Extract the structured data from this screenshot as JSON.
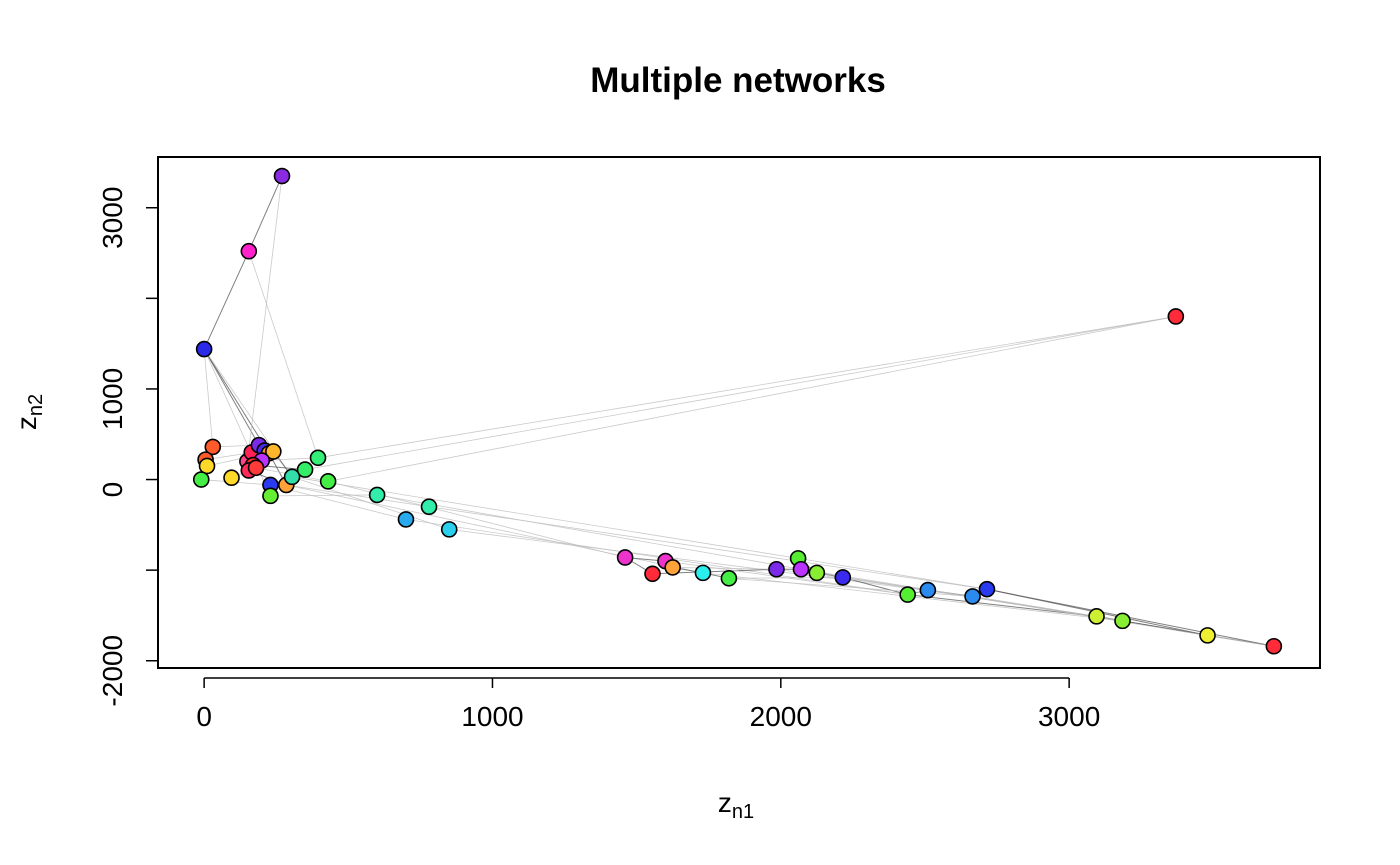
{
  "chart_data": {
    "type": "scatter",
    "title": "Multiple networks",
    "xlabel": "z",
    "xlabel_sub": "n1",
    "ylabel": "z",
    "ylabel_sub": "n2",
    "xlim": [
      -160,
      3870
    ],
    "ylim": [
      -2080,
      3560
    ],
    "xticks": [
      0,
      1000,
      2000,
      3000
    ],
    "xtick_labels": [
      "0",
      "1000",
      "2000",
      "3000"
    ],
    "yticks": [
      -2000,
      -1000,
      0,
      1000,
      2000,
      3000
    ],
    "ytick_labels": [
      "-2000",
      "",
      "0",
      "1000",
      "",
      "3000"
    ],
    "grid": false,
    "legend": "none",
    "points": [
      {
        "x": 270,
        "y": 3350,
        "color": "#8a2be2"
      },
      {
        "x": 155,
        "y": 2520,
        "color": "#ff22cc"
      },
      {
        "x": 0,
        "y": 1440,
        "color": "#2a2ae8"
      },
      {
        "x": 3370,
        "y": 1800,
        "color": "#ff2a3a"
      },
      {
        "x": 30,
        "y": 360,
        "color": "#ff5a2a"
      },
      {
        "x": 5,
        "y": 220,
        "color": "#ff5a2a"
      },
      {
        "x": 10,
        "y": 150,
        "color": "#ffd92a"
      },
      {
        "x": -10,
        "y": 0,
        "color": "#44ee44"
      },
      {
        "x": 95,
        "y": 20,
        "color": "#ffd92a"
      },
      {
        "x": 150,
        "y": 200,
        "color": "#ff4488"
      },
      {
        "x": 165,
        "y": 300,
        "color": "#ff2255"
      },
      {
        "x": 190,
        "y": 380,
        "color": "#7a2ae8"
      },
      {
        "x": 210,
        "y": 320,
        "color": "#4a2ae8"
      },
      {
        "x": 225,
        "y": 290,
        "color": "#ff8a2a"
      },
      {
        "x": 240,
        "y": 310,
        "color": "#ffb62a"
      },
      {
        "x": 200,
        "y": 210,
        "color": "#bb33ff"
      },
      {
        "x": 170,
        "y": 160,
        "color": "#ff2a2a"
      },
      {
        "x": 155,
        "y": 100,
        "color": "#ff2a5a"
      },
      {
        "x": 180,
        "y": 130,
        "color": "#ff3a3a"
      },
      {
        "x": 230,
        "y": -60,
        "color": "#2a3aee"
      },
      {
        "x": 230,
        "y": -180,
        "color": "#66ee33"
      },
      {
        "x": 285,
        "y": -60,
        "color": "#ffa23a"
      },
      {
        "x": 305,
        "y": 30,
        "color": "#33ddaa"
      },
      {
        "x": 350,
        "y": 110,
        "color": "#33ee66"
      },
      {
        "x": 395,
        "y": 240,
        "color": "#33ee77"
      },
      {
        "x": 430,
        "y": -20,
        "color": "#44ee44"
      },
      {
        "x": 600,
        "y": -170,
        "color": "#33eeaa"
      },
      {
        "x": 700,
        "y": -440,
        "color": "#2aaaee"
      },
      {
        "x": 780,
        "y": -300,
        "color": "#33eeaa"
      },
      {
        "x": 850,
        "y": -550,
        "color": "#2acfee"
      },
      {
        "x": 1460,
        "y": -860,
        "color": "#ee33cc"
      },
      {
        "x": 1555,
        "y": -1040,
        "color": "#ff2a3a"
      },
      {
        "x": 1600,
        "y": -900,
        "color": "#ee33cc"
      },
      {
        "x": 1625,
        "y": -970,
        "color": "#ffa23a"
      },
      {
        "x": 1730,
        "y": -1030,
        "color": "#2aeeee"
      },
      {
        "x": 1820,
        "y": -1090,
        "color": "#44ee44"
      },
      {
        "x": 1985,
        "y": -990,
        "color": "#7a2ae8"
      },
      {
        "x": 2060,
        "y": -870,
        "color": "#55ee33"
      },
      {
        "x": 2070,
        "y": -990,
        "color": "#bb33ff"
      },
      {
        "x": 2125,
        "y": -1030,
        "color": "#88ee33"
      },
      {
        "x": 2215,
        "y": -1080,
        "color": "#3a2aee"
      },
      {
        "x": 2440,
        "y": -1270,
        "color": "#55ee33"
      },
      {
        "x": 2510,
        "y": -1220,
        "color": "#2a8aee"
      },
      {
        "x": 2665,
        "y": -1290,
        "color": "#2a8aee"
      },
      {
        "x": 2715,
        "y": -1210,
        "color": "#2a3aee"
      },
      {
        "x": 3095,
        "y": -1510,
        "color": "#ccee33"
      },
      {
        "x": 3185,
        "y": -1560,
        "color": "#88ee33"
      },
      {
        "x": 3480,
        "y": -1720,
        "color": "#eeee33"
      },
      {
        "x": 3710,
        "y": -1840,
        "color": "#ff2a3a"
      }
    ],
    "edges": [
      [
        0,
        1,
        "dark"
      ],
      [
        1,
        2,
        "dark"
      ],
      [
        2,
        11,
        "dark"
      ],
      [
        2,
        13,
        "dark"
      ],
      [
        2,
        20,
        "light"
      ],
      [
        2,
        4,
        "light"
      ],
      [
        2,
        22,
        "light"
      ],
      [
        0,
        9,
        "light"
      ],
      [
        1,
        24,
        "light"
      ],
      [
        4,
        11,
        "light"
      ],
      [
        5,
        12,
        "light"
      ],
      [
        6,
        14,
        "light"
      ],
      [
        7,
        19,
        "light"
      ],
      [
        8,
        18,
        "light"
      ],
      [
        9,
        15,
        "dark"
      ],
      [
        10,
        12,
        "dark"
      ],
      [
        11,
        13,
        "dark"
      ],
      [
        13,
        21,
        "dark"
      ],
      [
        14,
        22,
        "dark"
      ],
      [
        15,
        24,
        "light"
      ],
      [
        16,
        23,
        "dark"
      ],
      [
        17,
        21,
        "dark"
      ],
      [
        18,
        25,
        "light"
      ],
      [
        19,
        27,
        "light"
      ],
      [
        20,
        26,
        "light"
      ],
      [
        21,
        28,
        "light"
      ],
      [
        22,
        29,
        "light"
      ],
      [
        25,
        30,
        "light"
      ],
      [
        23,
        3,
        "light"
      ],
      [
        24,
        3,
        "light"
      ],
      [
        25,
        3,
        "light"
      ],
      [
        26,
        38,
        "light"
      ],
      [
        27,
        41,
        "light"
      ],
      [
        28,
        44,
        "light"
      ],
      [
        29,
        43,
        "light"
      ],
      [
        21,
        34,
        "light"
      ],
      [
        22,
        37,
        "light"
      ],
      [
        30,
        31,
        "dark"
      ],
      [
        30,
        32,
        "dark"
      ],
      [
        32,
        33,
        "dark"
      ],
      [
        33,
        34,
        "dark"
      ],
      [
        34,
        35,
        "dark"
      ],
      [
        31,
        36,
        "dark"
      ],
      [
        36,
        38,
        "dark"
      ],
      [
        37,
        39,
        "dark"
      ],
      [
        38,
        40,
        "dark"
      ],
      [
        39,
        40,
        "dark"
      ],
      [
        40,
        41,
        "dark"
      ],
      [
        41,
        42,
        "dark"
      ],
      [
        42,
        43,
        "dark"
      ],
      [
        43,
        44,
        "dark"
      ],
      [
        44,
        47,
        "dark"
      ],
      [
        41,
        45,
        "dark"
      ],
      [
        42,
        46,
        "dark"
      ],
      [
        45,
        47,
        "dark"
      ],
      [
        46,
        47,
        "dark"
      ],
      [
        47,
        48,
        "dark"
      ],
      [
        44,
        48,
        "dark"
      ],
      [
        43,
        45,
        "light"
      ],
      [
        36,
        42,
        "light"
      ],
      [
        35,
        43,
        "light"
      ],
      [
        37,
        44,
        "light"
      ],
      [
        39,
        45,
        "light"
      ],
      [
        32,
        41,
        "light"
      ],
      [
        34,
        46,
        "light"
      ],
      [
        35,
        40,
        "light"
      ],
      [
        40,
        45,
        "light"
      ],
      [
        42,
        48,
        "light"
      ],
      [
        38,
        46,
        "light"
      ],
      [
        33,
        36,
        "light"
      ]
    ]
  }
}
